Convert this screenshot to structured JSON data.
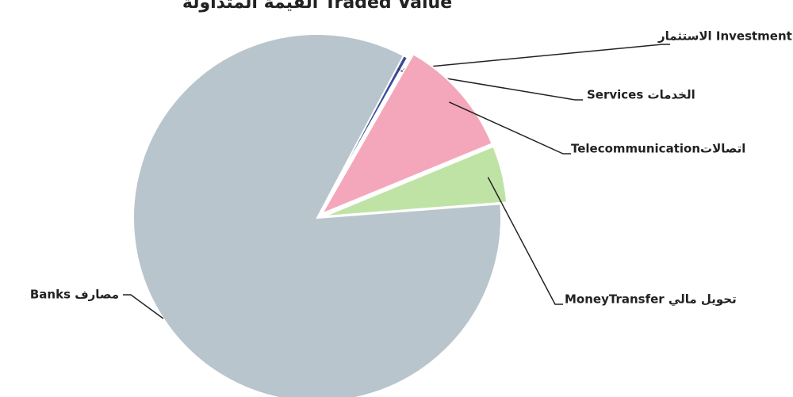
{
  "chart_data": {
    "type": "pie",
    "title": "القيمة المتداولة Traded Value",
    "categories": [
      "الاستثمار Investment",
      "Services الخدمات",
      "Telecommunicationاتصالات",
      "MoneyTransfer تحويل مالي",
      "Banks مصارف"
    ],
    "values": [
      0.4,
      0.1,
      10.5,
      5,
      84
    ],
    "colors": [
      "#3b4b9a",
      "#c0504d",
      "#f4a7bb",
      "#bfe3a5",
      "#b9c5cd"
    ],
    "start_angle": 28
  }
}
